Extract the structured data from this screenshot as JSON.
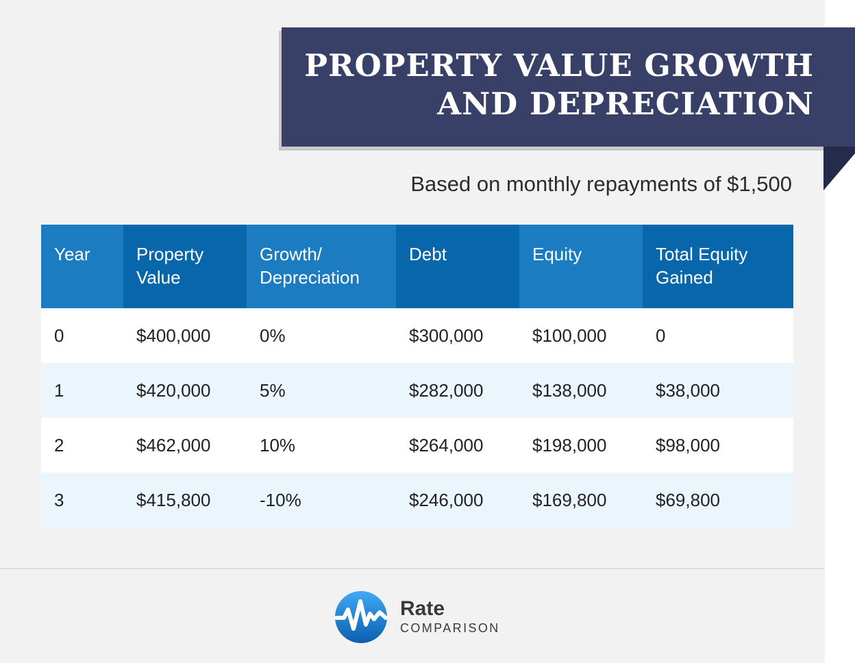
{
  "title": {
    "line1": "PROPERTY VALUE GROWTH",
    "line2": "AND DEPRECIATION"
  },
  "subtitle": "Based on monthly repayments of $1,500",
  "table": {
    "headers": [
      {
        "line1": "Year",
        "line2": ""
      },
      {
        "line1": "Property",
        "line2": "Value"
      },
      {
        "line1": "Growth/",
        "line2": "Depreciation"
      },
      {
        "line1": "Debt",
        "line2": ""
      },
      {
        "line1": "Equity",
        "line2": ""
      },
      {
        "line1": "Total Equity",
        "line2": "Gained"
      }
    ],
    "rows": [
      [
        "0",
        "$400,000",
        "0%",
        "$300,000",
        "$100,000",
        "0"
      ],
      [
        "1",
        "$420,000",
        "5%",
        "$282,000",
        "$138,000",
        "$38,000"
      ],
      [
        "2",
        "$462,000",
        "10%",
        "$264,000",
        "$198,000",
        "$98,000"
      ],
      [
        "3",
        "$415,800",
        "-10%",
        "$246,000",
        "$169,800",
        "$69,800"
      ]
    ]
  },
  "logo": {
    "icon": "rate-comparison-logo-icon",
    "name": "Rate",
    "tagline": "COMPARISON"
  },
  "colors": {
    "banner": "#384068",
    "banner_fold": "#252b4a",
    "header_light": "#1b7cc2",
    "header_dark": "#0866aa",
    "row_alt": "#ebf5fc",
    "background": "#f2f2f2"
  }
}
